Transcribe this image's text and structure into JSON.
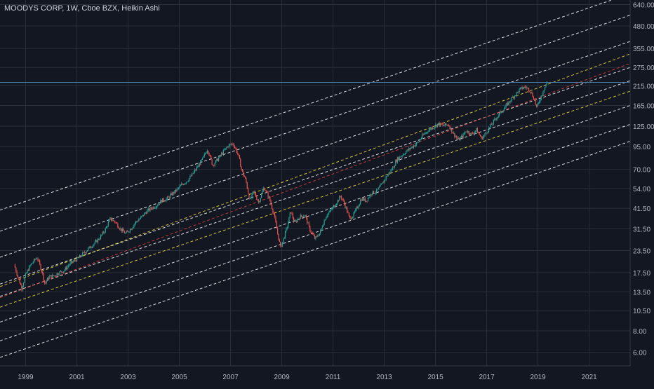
{
  "chart_data": {
    "type": "line",
    "title": "MOODYS CORP, 1W, Cboe BZX, Heikin Ashi",
    "y_scale": "log",
    "ylim": [
      5.0,
      680.0
    ],
    "xlim": [
      1998.0,
      2022.6
    ],
    "grid": true,
    "y_ticks": [
      "6.00",
      "8.00",
      "10.50",
      "13.50",
      "17.50",
      "23.50",
      "31.50",
      "41.50",
      "54.00",
      "70.00",
      "95.00",
      "125.00",
      "165.00",
      "215.00",
      "275.00",
      "355.00",
      "480.00",
      "640.00"
    ],
    "x_ticks": [
      "1999",
      "2001",
      "2003",
      "2005",
      "2007",
      "2009",
      "2011",
      "2013",
      "2015",
      "2017",
      "2019",
      "2021"
    ],
    "horizontal_line": 225,
    "series": [
      {
        "x": [
          1998.55,
          1998.7,
          1998.85,
          1999.0,
          1999.2,
          1999.45,
          1999.65,
          1999.75,
          1999.9,
          2000.1,
          2000.3,
          2000.5,
          2000.7,
          2000.9,
          2001.1,
          2001.3,
          2001.5,
          2001.7,
          2001.9,
          2002.1,
          2002.3,
          2002.5,
          2002.7,
          2002.9,
          2003.1,
          2003.3,
          2003.5,
          2003.7,
          2003.9,
          2004.1,
          2004.3,
          2004.5,
          2004.7,
          2004.9,
          2005.1,
          2005.3,
          2005.5,
          2005.7,
          2005.9,
          2006.1,
          2006.3,
          2006.5,
          2006.7,
          2006.9,
          2007.1,
          2007.3,
          2007.45,
          2007.6,
          2007.75,
          2007.9,
          2008.1,
          2008.3,
          2008.5,
          2008.7,
          2008.85,
          2008.95,
          2009.05,
          2009.2,
          2009.35,
          2009.5,
          2009.7,
          2009.9,
          2010.1,
          2010.3,
          2010.5,
          2010.6,
          2010.75,
          2010.9,
          2011.1,
          2011.3,
          2011.5,
          2011.65,
          2011.8,
          2011.95,
          2012.1,
          2012.3,
          2012.5,
          2012.7,
          2012.9,
          2013.1,
          2013.3,
          2013.5,
          2013.7,
          2013.9,
          2014.1,
          2014.3,
          2014.5,
          2014.7,
          2014.9,
          2015.1,
          2015.3,
          2015.5,
          2015.7,
          2015.9,
          2016.05,
          2016.2,
          2016.4,
          2016.6,
          2016.8,
          2016.95,
          2017.1,
          2017.3,
          2017.5,
          2017.7,
          2017.9,
          2018.1,
          2018.3,
          2018.5,
          2018.7,
          2018.85,
          2018.95,
          2019.05,
          2019.2,
          2019.35
        ],
        "values": [
          19.5,
          16.5,
          14.2,
          17.0,
          19.5,
          21.5,
          17.5,
          15.0,
          16.5,
          16.8,
          17.5,
          18.0,
          19.5,
          20.5,
          21.5,
          23.0,
          24.5,
          26.0,
          28.0,
          31.0,
          36.0,
          34.5,
          31.5,
          29.5,
          31.5,
          34.5,
          36.5,
          39.5,
          41.5,
          43.0,
          46.0,
          47.0,
          50.0,
          53.0,
          57.0,
          60.0,
          65.0,
          72.0,
          80.0,
          92.0,
          74.0,
          80.0,
          88.0,
          96.0,
          99.0,
          85.0,
          68.0,
          60.0,
          46.0,
          52.0,
          45.0,
          55.0,
          48.0,
          38.0,
          29.0,
          24.5,
          27.0,
          32.0,
          40.0,
          34.0,
          37.0,
          38.0,
          31.0,
          27.5,
          30.0,
          33.5,
          38.0,
          40.0,
          44.0,
          49.0,
          42.0,
          36.0,
          38.0,
          42.0,
          47.0,
          46.0,
          51.0,
          52.0,
          57.0,
          64.0,
          70.0,
          80.0,
          85.0,
          90.0,
          95.0,
          100.0,
          110.0,
          118.0,
          123.0,
          129.0,
          126.0,
          128.0,
          113.0,
          104.0,
          109.0,
          118.0,
          112.0,
          119.0,
          106.0,
          113.0,
          122.0,
          135.0,
          148.0,
          160.0,
          175.0,
          190.0,
          205.0,
          212.0,
          202.0,
          180.0,
          160.0,
          175.0,
          200.0,
          225.0
        ]
      }
    ],
    "channel_lines": [
      {
        "color": "#ffffff",
        "style": "dashed",
        "start": 12.7,
        "end": 230.0
      },
      {
        "color": "#ffffff",
        "style": "dashed",
        "start": 15.0,
        "end": 275.0
      },
      {
        "color": "#ffffff",
        "style": "dashed",
        "start": 21.5,
        "end": 390.0
      },
      {
        "color": "#ffffff",
        "style": "dashed",
        "start": 30.5,
        "end": 555.0
      },
      {
        "color": "#ffffff",
        "style": "dashed",
        "start": 40.5,
        "end": 740.0
      },
      {
        "color": "#ffffff",
        "style": "dashed",
        "start": 9.0,
        "end": 165.0
      },
      {
        "color": "#ffffff",
        "style": "dashed",
        "start": 7.0,
        "end": 128.0
      },
      {
        "color": "#ffffff",
        "style": "dashed",
        "start": 5.6,
        "end": 102.0
      },
      {
        "color": "#f0e040",
        "style": "dashed",
        "start": 11.0,
        "end": 200.0
      },
      {
        "color": "#f0e040",
        "style": "dashed",
        "start": 14.5,
        "end": 330.0
      },
      {
        "color": "#e0403a",
        "style": "dashed",
        "start": 12.5,
        "end": 290.0
      }
    ],
    "colors": {
      "background": "#131722",
      "grid": "#2a2e39",
      "up": "#26a69a",
      "down": "#ef5350",
      "axis_text": "#b2b5be",
      "hline": "#4a7fa7"
    }
  }
}
